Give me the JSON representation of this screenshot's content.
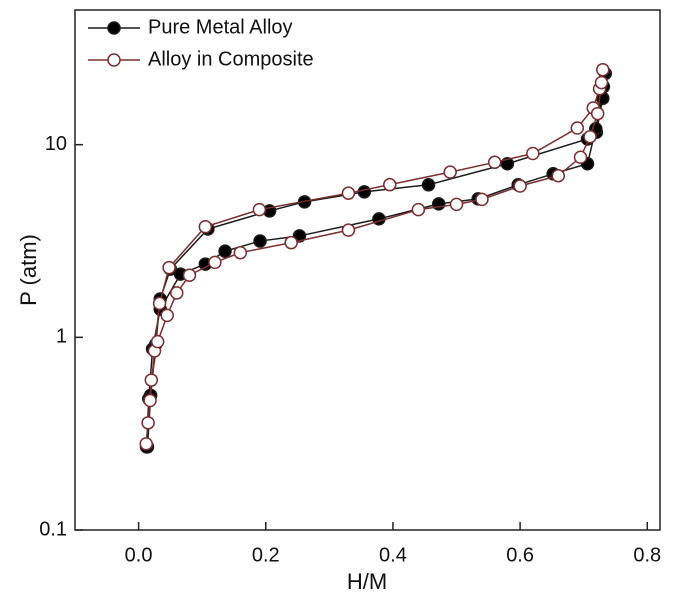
{
  "chart_data": {
    "type": "scatter-line",
    "x_label": "H/M",
    "y_label": "P (atm)",
    "xlim": [
      -0.1,
      0.82
    ],
    "xticks": [
      {
        "value": 0,
        "label": "0.0"
      },
      0.2,
      0.4,
      0.6,
      0.8
    ],
    "ylim": [
      0.1,
      50
    ],
    "yticks": [
      0.1,
      1,
      10
    ],
    "yscale": "log",
    "legend": "upper-left",
    "series": [
      {
        "name": "Pure Metal Alloy",
        "color": "#1a1a1a",
        "marker_fill": "#000000",
        "x": [
          0.014,
          0.019,
          0.027,
          0.034,
          0.05,
          0.109,
          0.206,
          0.261,
          0.355,
          0.456,
          0.58,
          0.706,
          0.72,
          0.73,
          0.734,
          0.731,
          0.719,
          0.706,
          0.652,
          0.597,
          0.534,
          0.472,
          0.378,
          0.253,
          0.191,
          0.136,
          0.105,
          0.066,
          0.034,
          0.022,
          0.016,
          0.0125
        ],
        "values": [
          0.27,
          0.5,
          0.92,
          1.58,
          2.26,
          3.65,
          4.53,
          5.05,
          5.69,
          6.19,
          7.96,
          10.7,
          11.6,
          17.4,
          23.4,
          20,
          12.1,
          7.96,
          7.06,
          6.19,
          5.23,
          4.93,
          4.12,
          3.36,
          3.16,
          2.8,
          2.4,
          2.13,
          1.4,
          0.87,
          0.48,
          0.27
        ]
      },
      {
        "name": "Alloy in Composite",
        "color": "#7a2e2e",
        "marker_fill": "#ffffff",
        "x": [
          0.012,
          0.018,
          0.025,
          0.033,
          0.048,
          0.105,
          0.19,
          0.33,
          0.395,
          0.49,
          0.56,
          0.62,
          0.69,
          0.715,
          0.725,
          0.73,
          0.728,
          0.722,
          0.71,
          0.695,
          0.66,
          0.6,
          0.54,
          0.5,
          0.44,
          0.33,
          0.24,
          0.16,
          0.12,
          0.08,
          0.06,
          0.045,
          0.03,
          0.02,
          0.015
        ],
        "values": [
          0.28,
          0.47,
          0.85,
          1.5,
          2.3,
          3.75,
          4.6,
          5.6,
          6.2,
          7.2,
          8.1,
          9.0,
          12.2,
          15.5,
          19.5,
          24.5,
          21,
          14.5,
          11.0,
          8.6,
          6.9,
          6.1,
          5.2,
          4.9,
          4.6,
          3.6,
          3.1,
          2.75,
          2.45,
          2.1,
          1.7,
          1.3,
          0.95,
          0.6,
          0.36
        ]
      }
    ]
  }
}
